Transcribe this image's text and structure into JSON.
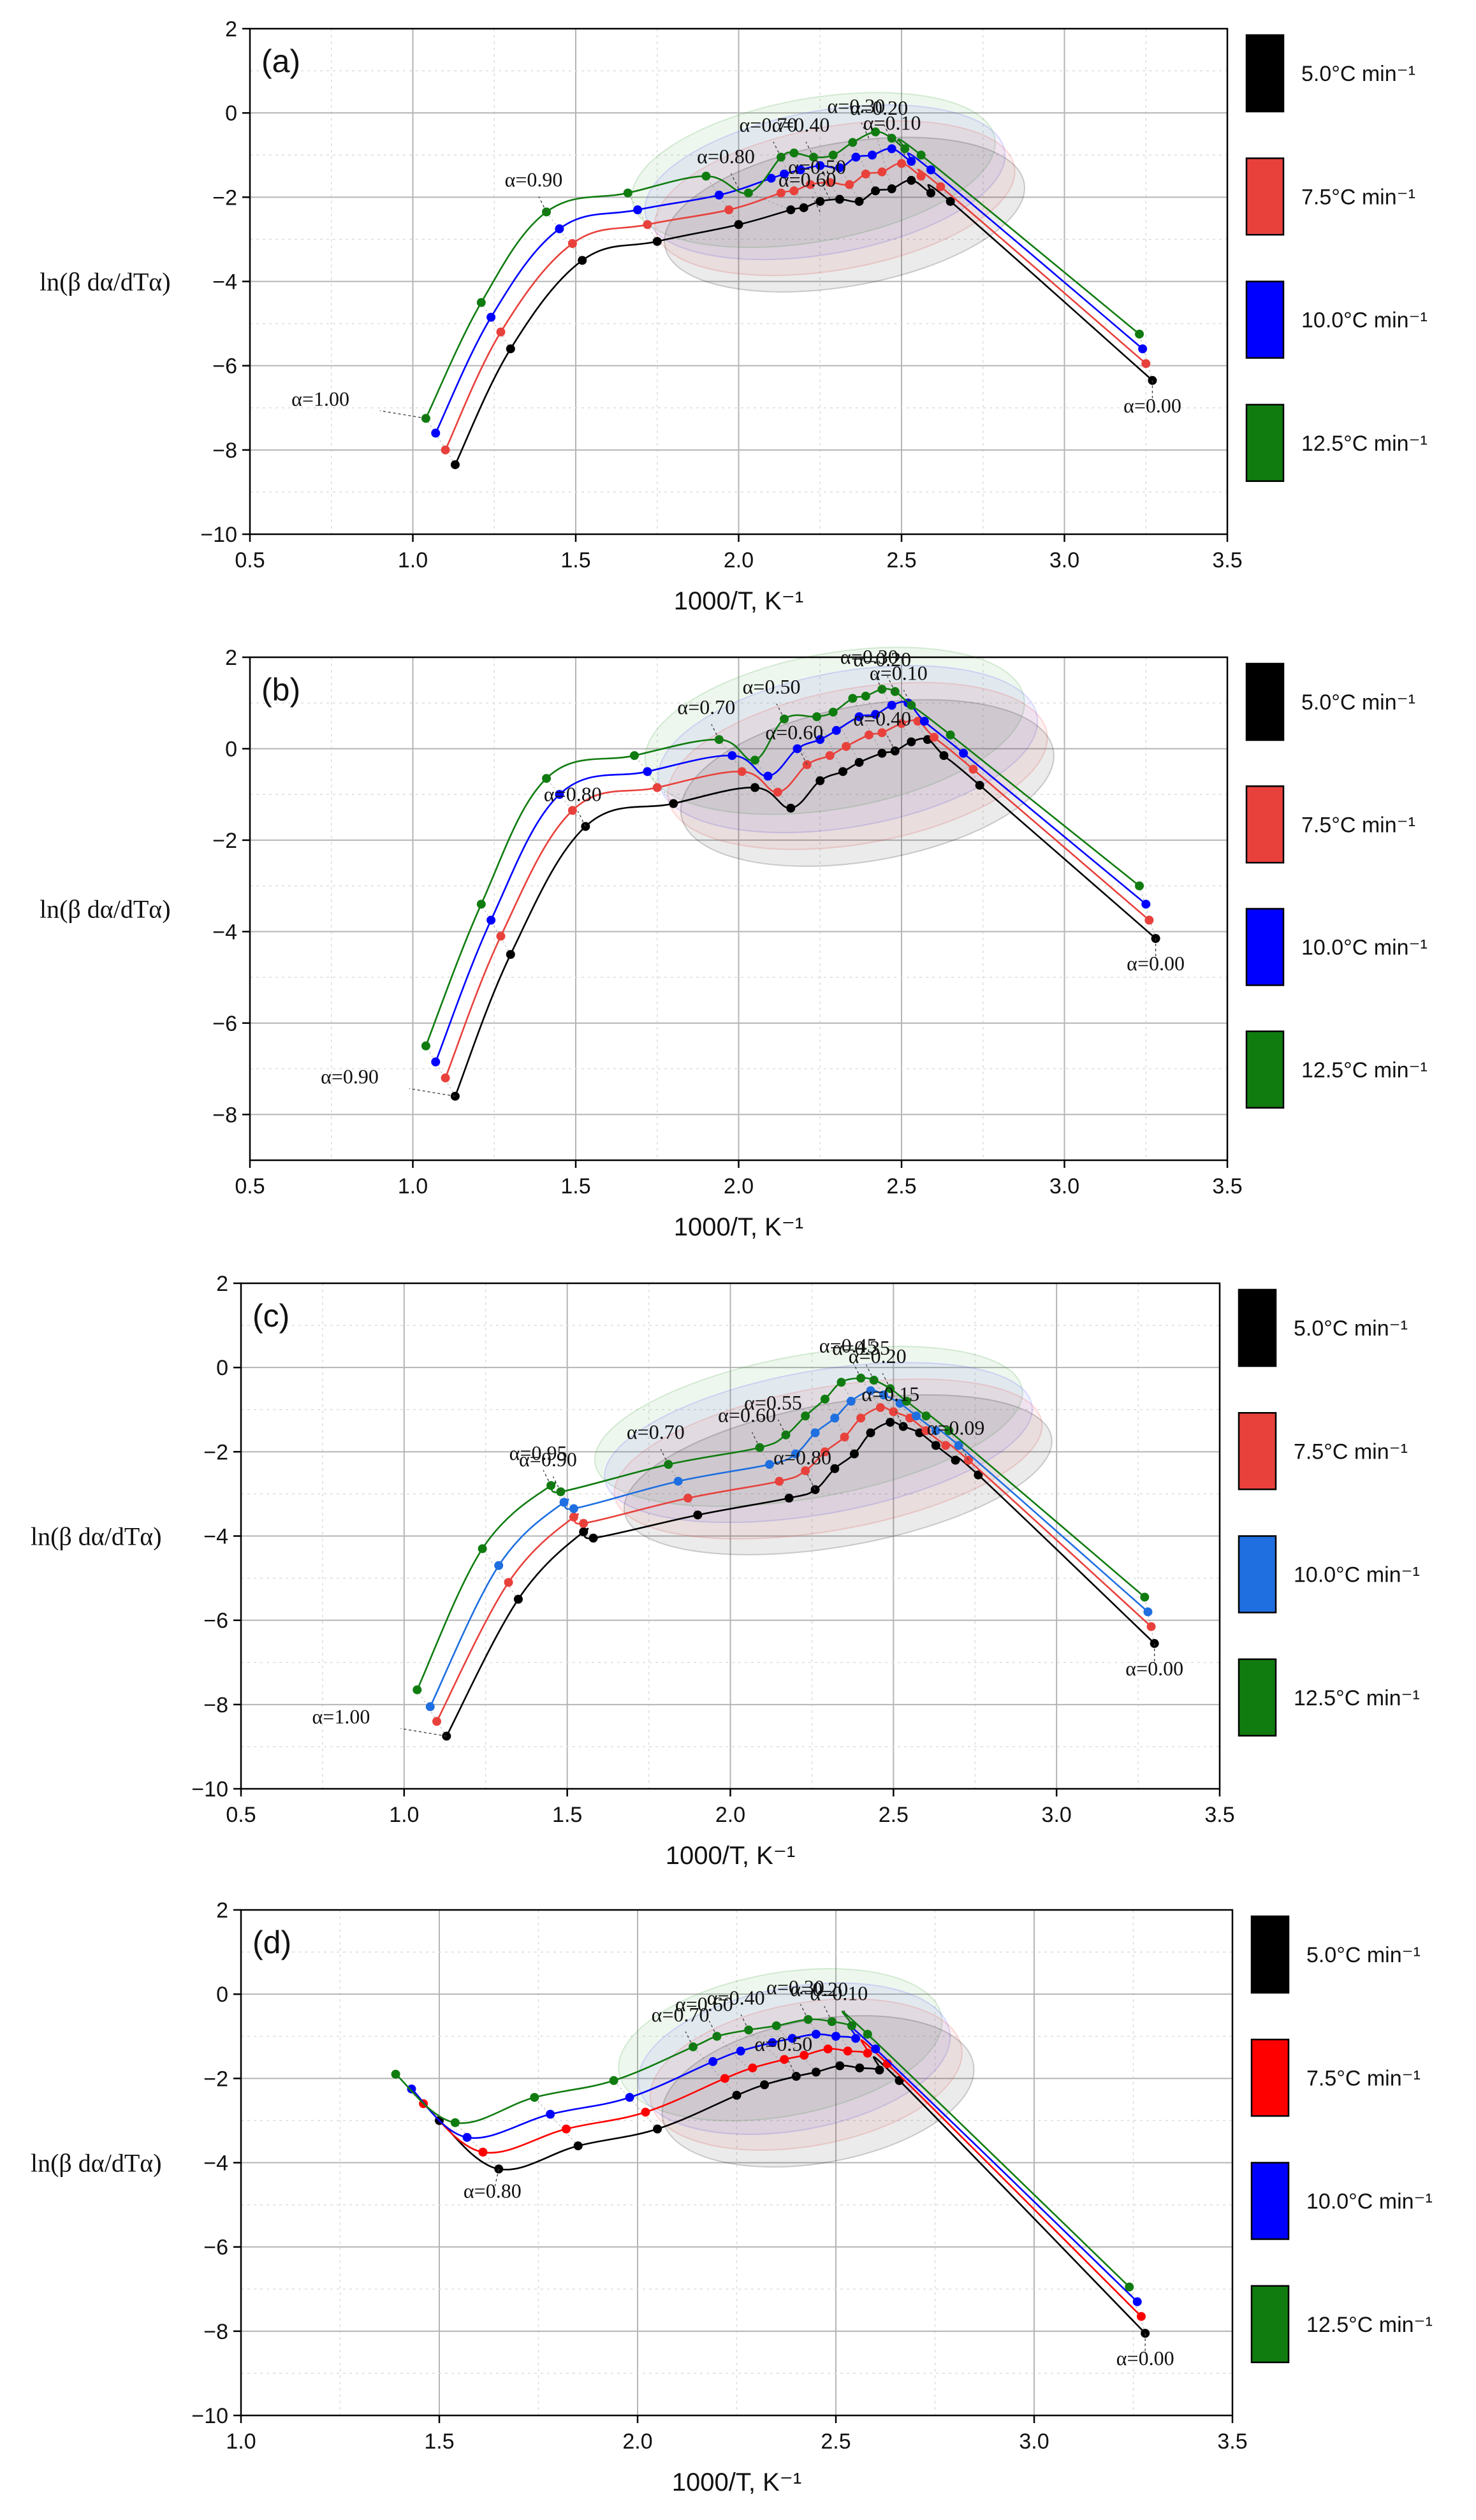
{
  "chart_data": [
    {
      "type": "line",
      "panel_label": "(a)",
      "xlabel": "1000/T, K⁻¹",
      "ylabel": "ln(β dα/dTα)",
      "xlim": [
        0.5,
        3.5
      ],
      "ylim": [
        -10,
        2
      ],
      "xticks": [
        "0.5",
        "1.0",
        "1.5",
        "2.0",
        "2.5",
        "3.0",
        "3.5"
      ],
      "yticks": [
        "−10",
        "−8",
        "−6",
        "−4",
        "−2",
        "0",
        "2"
      ],
      "grid": true,
      "legend_position": "right",
      "series": [
        {
          "name": "5.0°C min⁻¹",
          "color": "#000000",
          "x": [
            1.13,
            1.3,
            1.52,
            1.75,
            2.0,
            2.16,
            2.2,
            2.25,
            2.31,
            2.37,
            2.42,
            2.47,
            2.53,
            2.59,
            2.65,
            3.27
          ],
          "y": [
            -8.35,
            -5.6,
            -3.5,
            -3.05,
            -2.65,
            -2.3,
            -2.25,
            -2.1,
            -2.05,
            -2.1,
            -1.85,
            -1.8,
            -1.6,
            -1.9,
            -2.1,
            -6.35
          ]
        },
        {
          "name": "7.5°C min⁻¹",
          "color": "#e8413c",
          "x": [
            1.1,
            1.27,
            1.49,
            1.72,
            1.97,
            2.13,
            2.17,
            2.22,
            2.28,
            2.34,
            2.39,
            2.44,
            2.5,
            2.56,
            2.62,
            3.25
          ],
          "y": [
            -8.0,
            -5.2,
            -3.1,
            -2.65,
            -2.3,
            -1.9,
            -1.85,
            -1.7,
            -1.65,
            -1.7,
            -1.45,
            -1.4,
            -1.2,
            -1.5,
            -1.75,
            -5.95
          ]
        },
        {
          "name": "10.0°C min⁻¹",
          "color": "#0000ff",
          "x": [
            1.07,
            1.24,
            1.45,
            1.69,
            1.94,
            2.1,
            2.14,
            2.19,
            2.25,
            2.31,
            2.36,
            2.41,
            2.47,
            2.53,
            2.59,
            3.24
          ],
          "y": [
            -7.6,
            -4.85,
            -2.75,
            -2.3,
            -1.95,
            -1.55,
            -1.45,
            -1.35,
            -1.25,
            -1.3,
            -1.05,
            -1.0,
            -0.85,
            -1.15,
            -1.35,
            -5.6
          ]
        },
        {
          "name": "12.5°C min⁻¹",
          "color": "#107c10",
          "x": [
            1.04,
            1.21,
            1.41,
            1.66,
            1.9,
            2.03,
            2.13,
            2.17,
            2.23,
            2.29,
            2.35,
            2.42,
            2.47,
            2.51,
            2.56,
            3.23
          ],
          "y": [
            -7.25,
            -4.5,
            -2.35,
            -1.9,
            -1.5,
            -1.9,
            -1.05,
            -0.95,
            -1.05,
            -1.0,
            -0.7,
            -0.45,
            -0.6,
            -0.85,
            -1.0,
            -5.25
          ]
        }
      ],
      "annotations": [
        {
          "text": "α=1.00",
          "x": 1.04,
          "y": -7.25
        },
        {
          "text": "α=0.90",
          "x": 1.41,
          "y": -2.35
        },
        {
          "text": "α=0.80",
          "x": 2.0,
          "y": -1.8
        },
        {
          "text": "α=0.70",
          "x": 2.13,
          "y": -1.05
        },
        {
          "text": "α=0.40",
          "x": 2.23,
          "y": -1.05
        },
        {
          "text": "α=0.30",
          "x": 2.4,
          "y": -0.6
        },
        {
          "text": "α=0.20",
          "x": 2.47,
          "y": -0.65
        },
        {
          "text": "α=0.10",
          "x": 2.51,
          "y": -1.0
        },
        {
          "text": "α=0.50",
          "x": 2.28,
          "y": -2.05
        },
        {
          "text": "α=0.60",
          "x": 2.25,
          "y": -2.35
        },
        {
          "text": "α=0.00",
          "x": 3.27,
          "y": -6.35
        }
      ]
    },
    {
      "type": "line",
      "panel_label": "(b)",
      "xlabel": "1000/T, K⁻¹",
      "ylabel": "ln(β dα/dTα)",
      "xlim": [
        0.5,
        3.5
      ],
      "ylim": [
        -9,
        2
      ],
      "xticks": [
        "0.5",
        "1.0",
        "1.5",
        "2.0",
        "2.5",
        "3.0",
        "3.5"
      ],
      "yticks": [
        "−8",
        "−6",
        "−4",
        "−2",
        "0",
        "2"
      ],
      "grid": true,
      "legend_position": "right",
      "series": [
        {
          "name": "5.0°C min⁻¹",
          "color": "#000000",
          "x": [
            1.13,
            1.3,
            1.53,
            1.8,
            2.05,
            2.16,
            2.25,
            2.32,
            2.37,
            2.44,
            2.48,
            2.53,
            2.58,
            2.63,
            2.74,
            3.28
          ],
          "y": [
            -7.6,
            -4.5,
            -1.7,
            -1.2,
            -0.85,
            -1.3,
            -0.7,
            -0.5,
            -0.3,
            -0.1,
            -0.05,
            0.15,
            0.2,
            -0.15,
            -0.8,
            -4.15
          ]
        },
        {
          "name": "7.5°C min⁻¹",
          "color": "#e8413c",
          "x": [
            1.1,
            1.27,
            1.49,
            1.75,
            2.01,
            2.12,
            2.21,
            2.28,
            2.33,
            2.4,
            2.44,
            2.5,
            2.55,
            2.6,
            2.72,
            3.26
          ],
          "y": [
            -7.2,
            -4.1,
            -1.35,
            -0.85,
            -0.5,
            -0.95,
            -0.35,
            -0.15,
            0.05,
            0.3,
            0.35,
            0.55,
            0.6,
            0.25,
            -0.45,
            -3.75
          ]
        },
        {
          "name": "10.0°C min⁻¹",
          "color": "#0000ff",
          "x": [
            1.07,
            1.24,
            1.45,
            1.72,
            1.98,
            2.09,
            2.18,
            2.25,
            2.3,
            2.37,
            2.42,
            2.47,
            2.52,
            2.57,
            2.69,
            3.25
          ],
          "y": [
            -6.85,
            -3.75,
            -1.0,
            -0.5,
            -0.15,
            -0.6,
            0.0,
            0.2,
            0.4,
            0.7,
            0.75,
            0.95,
            1.0,
            0.6,
            -0.1,
            -3.4
          ]
        },
        {
          "name": "12.5°C min⁻¹",
          "color": "#107c10",
          "x": [
            1.04,
            1.21,
            1.41,
            1.68,
            1.94,
            2.05,
            2.14,
            2.24,
            2.29,
            2.35,
            2.39,
            2.44,
            2.48,
            2.53,
            2.65,
            3.23
          ],
          "y": [
            -6.5,
            -3.4,
            -0.65,
            -0.15,
            0.2,
            -0.25,
            0.65,
            0.7,
            0.8,
            1.1,
            1.15,
            1.3,
            1.25,
            0.95,
            0.3,
            -3.0
          ]
        }
      ],
      "annotations": [
        {
          "text": "α=0.90",
          "x": 1.13,
          "y": -7.6
        },
        {
          "text": "α=0.80",
          "x": 1.53,
          "y": -1.7
        },
        {
          "text": "α=0.70",
          "x": 1.94,
          "y": 0.2
        },
        {
          "text": "α=0.50",
          "x": 2.14,
          "y": 0.65
        },
        {
          "text": "α=0.30",
          "x": 2.44,
          "y": 1.3
        },
        {
          "text": "α=0.20",
          "x": 2.48,
          "y": 1.25
        },
        {
          "text": "α=0.10",
          "x": 2.53,
          "y": 0.95
        },
        {
          "text": "α=0.40",
          "x": 2.48,
          "y": -0.05
        },
        {
          "text": "α=0.60",
          "x": 2.21,
          "y": -0.35
        },
        {
          "text": "α=0.00",
          "x": 3.28,
          "y": -4.15
        }
      ]
    },
    {
      "type": "line",
      "panel_label": "(c)",
      "xlabel": "1000/T, K⁻¹",
      "ylabel": "ln(β dα/dTα)",
      "xlim": [
        0.5,
        3.5
      ],
      "ylim": [
        -10,
        2
      ],
      "xticks": [
        "0.5",
        "1.0",
        "1.5",
        "2.0",
        "2.5",
        "3.0",
        "3.5"
      ],
      "yticks": [
        "−10",
        "−8",
        "−6",
        "−4",
        "−2",
        "0",
        "2"
      ],
      "grid": true,
      "legend_position": "right",
      "series": [
        {
          "name": "5.0°C min⁻¹",
          "color": "#000000",
          "x": [
            1.13,
            1.35,
            1.55,
            1.58,
            1.9,
            2.18,
            2.26,
            2.32,
            2.38,
            2.43,
            2.49,
            2.53,
            2.58,
            2.63,
            2.69,
            2.76,
            3.3
          ],
          "y": [
            -8.75,
            -5.5,
            -3.9,
            -4.05,
            -3.5,
            -3.1,
            -2.9,
            -2.4,
            -2.05,
            -1.55,
            -1.3,
            -1.4,
            -1.55,
            -1.85,
            -2.2,
            -2.55,
            -6.55
          ]
        },
        {
          "name": "7.5°C min⁻¹",
          "color": "#e8413c",
          "x": [
            1.1,
            1.32,
            1.52,
            1.55,
            1.87,
            2.15,
            2.23,
            2.29,
            2.35,
            2.4,
            2.46,
            2.5,
            2.55,
            2.6,
            2.66,
            2.73,
            3.29
          ],
          "y": [
            -8.4,
            -5.1,
            -3.55,
            -3.7,
            -3.1,
            -2.7,
            -2.45,
            -2.0,
            -1.65,
            -1.2,
            -0.95,
            -1.05,
            -1.2,
            -1.5,
            -1.85,
            -2.2,
            -6.15
          ]
        },
        {
          "name": "10.0°C min⁻¹",
          "color": "#1f6fe0",
          "x": [
            1.08,
            1.29,
            1.49,
            1.52,
            1.84,
            2.12,
            2.2,
            2.26,
            2.32,
            2.37,
            2.43,
            2.47,
            2.52,
            2.57,
            2.63,
            2.7,
            3.28
          ],
          "y": [
            -8.05,
            -4.7,
            -3.2,
            -3.35,
            -2.7,
            -2.3,
            -2.05,
            -1.55,
            -1.2,
            -0.8,
            -0.55,
            -0.65,
            -0.85,
            -1.15,
            -1.5,
            -1.85,
            -5.8
          ]
        },
        {
          "name": "12.5°C min⁻¹",
          "color": "#107c10",
          "x": [
            1.04,
            1.24,
            1.45,
            1.48,
            1.81,
            2.09,
            2.17,
            2.23,
            2.29,
            2.34,
            2.4,
            2.44,
            2.49,
            2.54,
            2.6,
            2.67,
            3.27
          ],
          "y": [
            -7.65,
            -4.3,
            -2.8,
            -2.95,
            -2.3,
            -1.9,
            -1.6,
            -1.15,
            -0.75,
            -0.35,
            -0.25,
            -0.3,
            -0.5,
            -0.8,
            -1.15,
            -1.5,
            -5.45
          ]
        }
      ],
      "annotations": [
        {
          "text": "α=1.00",
          "x": 1.13,
          "y": -8.75
        },
        {
          "text": "α=0.95",
          "x": 1.45,
          "y": -2.8
        },
        {
          "text": "α=0.90",
          "x": 1.48,
          "y": -2.95
        },
        {
          "text": "α=0.70",
          "x": 1.81,
          "y": -2.3
        },
        {
          "text": "α=0.60",
          "x": 2.09,
          "y": -1.9
        },
        {
          "text": "α=0.55",
          "x": 2.17,
          "y": -1.6
        },
        {
          "text": "α=0.45",
          "x": 2.4,
          "y": -0.25
        },
        {
          "text": "α=0.35",
          "x": 2.44,
          "y": -0.3
        },
        {
          "text": "α=0.20",
          "x": 2.49,
          "y": -0.5
        },
        {
          "text": "α=0.09",
          "x": 2.73,
          "y": -2.2
        },
        {
          "text": "α=0.15",
          "x": 2.53,
          "y": -1.4
        },
        {
          "text": "α=0.80",
          "x": 2.26,
          "y": -2.9
        },
        {
          "text": "α=0.00",
          "x": 3.3,
          "y": -6.55
        }
      ]
    },
    {
      "type": "line",
      "panel_label": "(d)",
      "xlabel": "1000/T, K⁻¹",
      "ylabel": "ln(β dα/dTα)",
      "xlim": [
        1.0,
        3.5
      ],
      "ylim": [
        -10,
        2
      ],
      "xticks": [
        "1.0",
        "1.5",
        "2.0",
        "2.5",
        "3.0",
        "3.5"
      ],
      "yticks": [
        "−10",
        "−8",
        "−6",
        "−4",
        "−2",
        "0",
        "2"
      ],
      "grid": true,
      "legend_position": "right",
      "series": [
        {
          "name": "5.0°C min⁻¹",
          "color": "#000000",
          "x": [
            1.5,
            1.65,
            1.85,
            2.05,
            2.25,
            2.32,
            2.4,
            2.45,
            2.51,
            2.56,
            2.61,
            2.66,
            3.28
          ],
          "y": [
            -3.0,
            -4.15,
            -3.6,
            -3.2,
            -2.4,
            -2.15,
            -1.95,
            -1.85,
            -1.7,
            -1.75,
            -1.8,
            -2.05,
            -8.05
          ]
        },
        {
          "name": "7.5°C min⁻¹",
          "color": "#ff0000",
          "x": [
            1.46,
            1.61,
            1.82,
            2.02,
            2.22,
            2.29,
            2.37,
            2.42,
            2.48,
            2.53,
            2.58,
            2.63,
            3.27
          ],
          "y": [
            -2.6,
            -3.75,
            -3.2,
            -2.8,
            -2.0,
            -1.75,
            -1.55,
            -1.45,
            -1.3,
            -1.35,
            -1.4,
            -1.65,
            -7.65
          ]
        },
        {
          "name": "10.0°C min⁻¹",
          "color": "#0000ff",
          "x": [
            1.43,
            1.57,
            1.78,
            1.98,
            2.19,
            2.26,
            2.34,
            2.39,
            2.45,
            2.5,
            2.55,
            2.6,
            3.26
          ],
          "y": [
            -2.25,
            -3.4,
            -2.85,
            -2.45,
            -1.6,
            -1.35,
            -1.15,
            -1.05,
            -0.95,
            -1.0,
            -1.05,
            -1.3,
            -7.3
          ]
        },
        {
          "name": "12.5°C min⁻¹",
          "color": "#107c10",
          "x": [
            1.39,
            1.54,
            1.74,
            1.94,
            2.14,
            2.2,
            2.28,
            2.35,
            2.43,
            2.49,
            2.54,
            2.58,
            3.24
          ],
          "y": [
            -1.9,
            -3.05,
            -2.45,
            -2.05,
            -1.25,
            -1.0,
            -0.85,
            -0.75,
            -0.6,
            -0.65,
            -0.75,
            -0.95,
            -6.95
          ]
        }
      ],
      "annotations": [
        {
          "text": "α=0.80",
          "x": 1.65,
          "y": -4.15
        },
        {
          "text": "α=0.70",
          "x": 2.14,
          "y": -1.25
        },
        {
          "text": "α=0.60",
          "x": 2.2,
          "y": -1.0
        },
        {
          "text": "α=0.40",
          "x": 2.28,
          "y": -0.85
        },
        {
          "text": "α=0.30",
          "x": 2.43,
          "y": -0.6
        },
        {
          "text": "α=0.20",
          "x": 2.49,
          "y": -0.65
        },
        {
          "text": "α=0.10",
          "x": 2.54,
          "y": -0.75
        },
        {
          "text": "α=0.50",
          "x": 2.4,
          "y": -1.95
        },
        {
          "text": "α=0.00",
          "x": 3.28,
          "y": -8.05
        }
      ]
    }
  ]
}
